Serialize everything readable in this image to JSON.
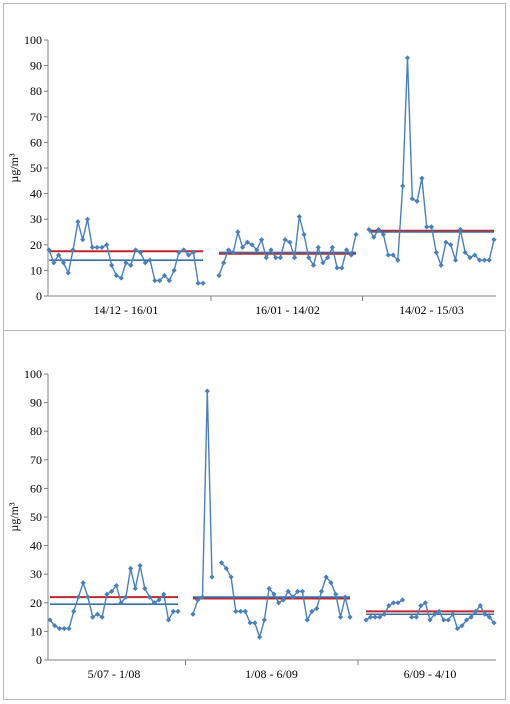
{
  "chart_data": [
    {
      "type": "line",
      "ylabel": "µg/m³",
      "ylim": [
        0,
        100
      ],
      "yticks": [
        0,
        10,
        20,
        30,
        40,
        50,
        60,
        70,
        80,
        90,
        100
      ],
      "grid": false,
      "segments": [
        {
          "category": "14/12 - 16/01",
          "values": [
            18,
            13,
            16,
            13,
            9,
            18,
            29,
            22,
            30,
            19,
            19,
            19,
            20,
            12,
            8,
            7,
            13,
            12,
            18,
            17,
            13,
            14,
            6,
            6,
            8,
            6,
            10,
            17,
            18,
            16,
            17,
            5,
            5
          ],
          "mean": 14,
          "reference": 17.5
        },
        {
          "category": "16/01 - 14/02",
          "values": [
            8,
            13,
            18,
            17,
            25,
            19,
            21,
            20,
            18,
            22,
            15,
            18,
            15,
            15,
            22,
            21,
            15,
            31,
            24,
            15,
            12,
            19,
            13,
            15,
            19,
            11,
            11,
            18,
            16,
            24
          ],
          "mean": 17,
          "reference": 16.5
        },
        {
          "category": "14/02 - 15/03",
          "values": [
            26,
            23,
            26,
            24,
            16,
            16,
            14,
            43,
            93,
            38,
            37,
            46,
            27,
            27,
            17,
            12,
            21,
            20,
            14,
            26,
            17,
            15,
            16,
            14,
            14,
            14,
            22
          ],
          "mean": 25,
          "reference": 25.5
        }
      ],
      "reference_color": "#c0272d",
      "mean_color": "#3a6fa6",
      "series_color": "#4a7fb8"
    },
    {
      "type": "line",
      "ylabel": "µg/m³",
      "ylim": [
        0,
        100
      ],
      "yticks": [
        0,
        10,
        20,
        30,
        40,
        50,
        60,
        70,
        80,
        90,
        100
      ],
      "grid": false,
      "segments": [
        {
          "category": "5/07 - 1/08",
          "values": [
            14,
            12,
            11,
            11,
            11,
            17,
            22,
            27,
            22,
            15,
            16,
            15,
            23,
            24,
            26,
            20,
            22,
            32,
            25,
            33,
            25,
            22,
            20,
            21,
            23,
            14,
            17,
            17
          ],
          "mean": 19.5,
          "reference": 22
        },
        {
          "category": "1/08 - 6/09",
          "values": [
            16,
            21,
            22,
            94,
            29,
            null,
            34,
            32,
            29,
            17,
            17,
            17,
            13,
            13,
            8,
            14,
            25,
            23,
            20,
            21,
            24,
            22,
            24,
            24,
            14,
            17,
            18,
            24,
            29,
            27,
            23,
            15,
            22,
            15
          ],
          "mean": 22,
          "reference": 21.5
        },
        {
          "category": "6/09 - 4/10",
          "values": [
            14,
            15,
            15,
            15,
            16,
            19,
            20,
            20,
            21,
            null,
            15,
            15,
            19,
            20,
            14,
            16,
            17,
            14,
            14,
            16,
            11,
            12,
            14,
            15,
            17,
            19,
            16,
            15,
            13
          ],
          "mean": 16,
          "reference": 17
        }
      ],
      "reference_color": "#c0272d",
      "mean_color": "#3a6fa6",
      "series_color": "#4a7fb8"
    }
  ]
}
